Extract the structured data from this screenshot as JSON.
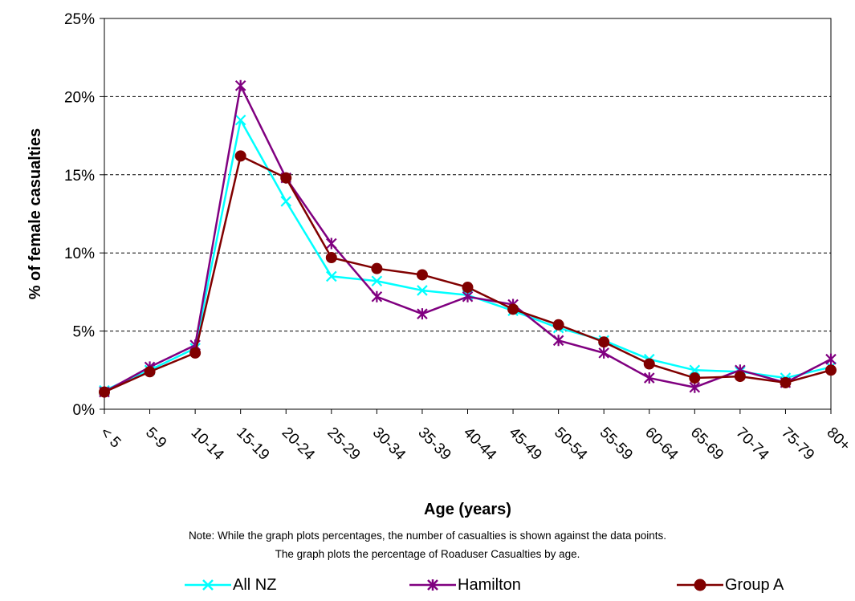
{
  "chart_data": {
    "type": "line",
    "xlabel": "Age (years)",
    "ylabel": "% of female casualties",
    "ylim": [
      0,
      25
    ],
    "yticks": [
      "0%",
      "5%",
      "10%",
      "15%",
      "20%",
      "25%"
    ],
    "grid": "horizontal dashed",
    "legend_position": "bottom",
    "categories": [
      "< 5",
      "5-9",
      "10-14",
      "15-19",
      "20-24",
      "25-29",
      "30-34",
      "35-39",
      "40-44",
      "45-49",
      "50-54",
      "55-59",
      "60-64",
      "65-69",
      "70-74",
      "75-79",
      "80+"
    ],
    "series": [
      {
        "name": "All NZ",
        "color": "#00FFFF",
        "marker": "x",
        "values": [
          1.2,
          2.5,
          3.9,
          18.5,
          13.3,
          8.5,
          8.2,
          7.6,
          7.3,
          6.3,
          5.2,
          4.4,
          3.2,
          2.5,
          2.4,
          2.0,
          2.7
        ]
      },
      {
        "name": "Hamilton",
        "color": "#800080",
        "marker": "star",
        "values": [
          1.1,
          2.7,
          4.1,
          20.7,
          14.8,
          10.6,
          7.2,
          6.1,
          7.2,
          6.7,
          4.4,
          3.6,
          2.0,
          1.4,
          2.5,
          1.7,
          3.2
        ]
      },
      {
        "name": "Group A",
        "color": "#800000",
        "marker": "circle",
        "values": [
          1.1,
          2.4,
          3.6,
          16.2,
          14.8,
          9.7,
          9.0,
          8.6,
          7.8,
          6.4,
          5.4,
          4.3,
          2.9,
          2.0,
          2.1,
          1.7,
          2.5
        ]
      }
    ]
  },
  "notes": {
    "line1": "Note: While the graph plots percentages, the number of casualties is shown against the  data points.",
    "line2": "The graph plots the percentage of Roaduser Casualties by age."
  }
}
